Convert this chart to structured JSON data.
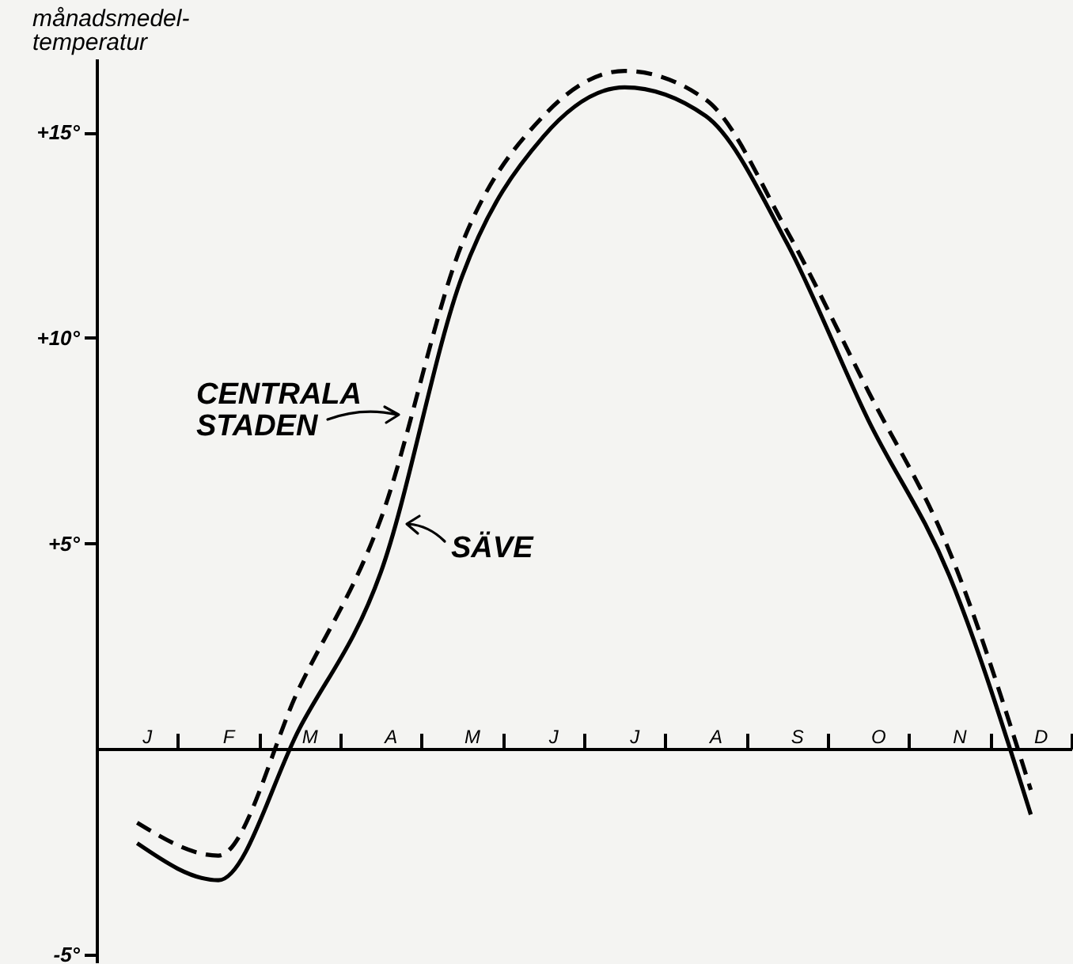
{
  "chart_data": {
    "type": "line",
    "ylabel": "månadsmedel-\ntemperatur",
    "categories": [
      "J",
      "F",
      "M",
      "A",
      "M",
      "J",
      "J",
      "A",
      "S",
      "O",
      "N",
      "D"
    ],
    "series": [
      {
        "name": "CENTRALA STADEN",
        "color": "#000000",
        "line_style": "dashed",
        "values": [
          -1.8,
          -2.6,
          1.5,
          5.6,
          12.3,
          15.4,
          16.5,
          15.8,
          12.6,
          8.7,
          4.8,
          -1.0
        ]
      },
      {
        "name": "SÄVE",
        "color": "#000000",
        "line_style": "solid",
        "values": [
          -2.3,
          -3.2,
          0.5,
          4.3,
          11.5,
          14.9,
          16.1,
          15.4,
          12.3,
          8.0,
          4.2,
          -1.6
        ]
      }
    ],
    "ylim": [
      -5.2,
      16.8
    ],
    "yticks": [
      {
        "value": 15,
        "label": "+15°"
      },
      {
        "value": 10,
        "label": "+10°"
      },
      {
        "value": 5,
        "label": "+5°"
      },
      {
        "value": -5,
        "label": "-5°"
      }
    ],
    "grid": false
  }
}
